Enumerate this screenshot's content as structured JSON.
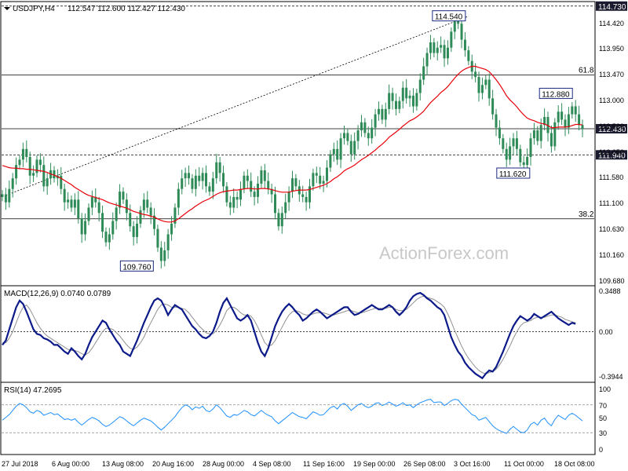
{
  "header": {
    "symbol": "USDJPY,H4",
    "ohlc": "112.547 112.600 112.427 112.430"
  },
  "watermark": "ActionForex.com",
  "price_panel": {
    "y_ticks": [
      "114.420",
      "113.950",
      "113.470",
      "113.000",
      "112.530",
      "112.050",
      "111.580",
      "111.100",
      "110.630",
      "110.160",
      "109.680"
    ],
    "price_tags": [
      {
        "label": "114.730",
        "value": 114.73,
        "style": "dark"
      },
      {
        "label": "112.430",
        "value": 112.43,
        "style": "dark"
      },
      {
        "label": "111.940",
        "value": 111.94,
        "style": "dark"
      }
    ],
    "annotations": [
      {
        "label": "114.540",
        "value": 114.54
      },
      {
        "label": "112.880",
        "value": 112.88
      },
      {
        "label": "111.620",
        "value": 111.62
      },
      {
        "label": "109.760",
        "value": 109.76
      }
    ],
    "fib_labels": [
      {
        "label": "61.8",
        "value": 113.44
      },
      {
        "label": "38.2",
        "value": 110.74
      }
    ],
    "level_lines": [
      114.73,
      113.44,
      112.43,
      111.94,
      110.74
    ]
  },
  "macd_panel": {
    "title": "MACD(12,26,9) 0.0740 0.0789",
    "y_ticks": [
      "0.3488",
      "0.00",
      "-0.3944"
    ]
  },
  "rsi_panel": {
    "title": "RSI(14) 47.2695",
    "y_ticks": [
      "100",
      "70",
      "50",
      "30",
      "0"
    ]
  },
  "x_ticks": [
    "27 Jul 2018",
    "6 Aug 00:00",
    "13 Aug 08:00",
    "20 Aug 16:00",
    "28 Aug 00:00",
    "4 Sep 08:00",
    "11 Sep 16:00",
    "19 Sep 00:00",
    "26 Sep 08:00",
    "3 Oct 16:00",
    "11 Oct 00:00",
    "18 Oct 08:00"
  ],
  "colors": {
    "candle": "#2e8b57",
    "ma": "#e8000b",
    "macd": "#0c1a8a",
    "signal": "#909090",
    "rsi": "#1e90ff",
    "tag_bg": "#1a1a2e"
  },
  "chart_data": {
    "type": "candlestick",
    "price_ylim": [
      109.5,
      114.8
    ],
    "close": [
      111.2,
      111.05,
      111.3,
      111.5,
      111.75,
      111.85,
      112.05,
      111.9,
      111.55,
      111.6,
      111.85,
      111.75,
      111.35,
      111.5,
      111.65,
      111.5,
      111.55,
      111.3,
      111.05,
      111.1,
      110.95,
      111.1,
      110.75,
      110.45,
      110.7,
      110.95,
      111.15,
      111.05,
      110.85,
      110.5,
      110.3,
      110.45,
      110.7,
      110.95,
      111.25,
      111.1,
      110.85,
      110.6,
      110.4,
      110.65,
      110.9,
      111.1,
      110.95,
      110.8,
      110.55,
      110.2,
      109.95,
      110.15,
      110.45,
      110.65,
      110.95,
      111.3,
      111.5,
      111.6,
      111.5,
      111.3,
      111.55,
      111.45,
      111.6,
      111.35,
      111.25,
      111.5,
      111.8,
      111.6,
      111.35,
      111.05,
      110.95,
      111.15,
      111.1,
      111.3,
      111.55,
      111.45,
      111.25,
      111.15,
      111.4,
      111.65,
      111.45,
      111.3,
      111.2,
      110.85,
      110.6,
      110.85,
      111.05,
      111.25,
      111.5,
      111.35,
      111.2,
      111.15,
      111.05,
      111.35,
      111.6,
      111.55,
      111.4,
      111.45,
      111.7,
      111.95,
      112.05,
      111.85,
      112.25,
      112.35,
      112.2,
      111.95,
      112.2,
      112.4,
      112.55,
      112.35,
      112.25,
      112.45,
      112.7,
      112.8,
      112.6,
      112.8,
      113.1,
      112.95,
      112.8,
      112.95,
      113.2,
      113.0,
      113.05,
      112.85,
      113.1,
      113.35,
      113.6,
      113.85,
      114.05,
      113.85,
      113.95,
      114.0,
      113.75,
      113.95,
      114.25,
      114.45,
      114.4,
      114.1,
      113.9,
      113.7,
      113.5,
      113.4,
      113.1,
      113.25,
      113.35,
      113.0,
      112.7,
      112.45,
      112.25,
      112.05,
      111.85,
      112.1,
      112.25,
      112.05,
      111.8,
      111.75,
      111.9,
      112.25,
      112.4,
      112.2,
      112.5,
      112.65,
      112.35,
      112.1,
      112.55,
      112.75,
      112.6,
      112.45,
      112.7,
      112.85,
      112.7,
      112.5,
      112.43
    ],
    "ma_start_index": 0,
    "ma": [
      111.74,
      111.72,
      111.7,
      111.69,
      111.69,
      111.68,
      111.68,
      111.67,
      111.67,
      111.66,
      111.65,
      111.64,
      111.63,
      111.61,
      111.58,
      111.56,
      111.53,
      111.5,
      111.46,
      111.42,
      111.38,
      111.33,
      111.29,
      111.25,
      111.21,
      111.18,
      111.16,
      111.14,
      111.12,
      111.1,
      111.07,
      111.04,
      111.02,
      111.0,
      110.98,
      110.96,
      110.94,
      110.91,
      110.88,
      110.86,
      110.84,
      110.82,
      110.81,
      110.79,
      110.77,
      110.74,
      110.71,
      110.69,
      110.68,
      110.68,
      110.7,
      110.74,
      110.79,
      110.84,
      110.89,
      110.93,
      110.98,
      111.02,
      111.06,
      111.09,
      111.12,
      111.16,
      111.2,
      111.23,
      111.25,
      111.26,
      111.27,
      111.28,
      111.28,
      111.29,
      111.3,
      111.31,
      111.31,
      111.3,
      111.3,
      111.31,
      111.31,
      111.3,
      111.29,
      111.27,
      111.25,
      111.24,
      111.24,
      111.24,
      111.26,
      111.27,
      111.28,
      111.28,
      111.28,
      111.29,
      111.31,
      111.33,
      111.35,
      111.37,
      111.4,
      111.44,
      111.49,
      111.53,
      111.58,
      111.64,
      111.68,
      111.71,
      111.75,
      111.8,
      111.85,
      111.89,
      111.93,
      111.98,
      112.03,
      112.09,
      112.14,
      112.2,
      112.27,
      112.32,
      112.37,
      112.42,
      112.48,
      112.53,
      112.58,
      112.61,
      112.65,
      112.7,
      112.76,
      112.84,
      112.92,
      112.98,
      113.04,
      113.11,
      113.16,
      113.22,
      113.3,
      113.38,
      113.45,
      113.51,
      113.55,
      113.58,
      113.6,
      113.6,
      113.58,
      113.56,
      113.54,
      113.5,
      113.43,
      113.35,
      113.26,
      113.16,
      113.05,
      112.97,
      112.91,
      112.84,
      112.76,
      112.69,
      112.63,
      112.6,
      112.58,
      112.55,
      112.53,
      112.52,
      112.49,
      112.45,
      112.45,
      112.46,
      112.46,
      112.46,
      112.47,
      112.49,
      112.51,
      112.51,
      112.5
    ],
    "macd_ylim": [
      -0.45,
      0.4
    ],
    "macd": [
      -0.12,
      -0.08,
      0.02,
      0.12,
      0.22,
      0.28,
      0.25,
      0.18,
      0.1,
      0.02,
      -0.02,
      -0.03,
      -0.06,
      -0.07,
      -0.09,
      -0.12,
      -0.12,
      -0.15,
      -0.18,
      -0.2,
      -0.15,
      -0.18,
      -0.22,
      -0.25,
      -0.2,
      -0.12,
      -0.05,
      0.0,
      0.05,
      0.1,
      0.08,
      0.02,
      -0.03,
      -0.08,
      -0.12,
      -0.18,
      -0.2,
      -0.22,
      -0.15,
      -0.08,
      0.0,
      0.08,
      0.15,
      0.22,
      0.28,
      0.3,
      0.28,
      0.22,
      0.15,
      0.2,
      0.24,
      0.22,
      0.2,
      0.15,
      0.1,
      0.05,
      0.02,
      -0.02,
      -0.05,
      -0.06,
      -0.04,
      0.0,
      0.08,
      0.18,
      0.26,
      0.3,
      0.24,
      0.18,
      0.12,
      0.1,
      0.12,
      0.15,
      0.1,
      0.0,
      -0.1,
      -0.18,
      -0.22,
      -0.15,
      -0.05,
      0.05,
      0.12,
      0.18,
      0.22,
      0.25,
      0.22,
      0.18,
      0.15,
      0.1,
      0.12,
      0.15,
      0.18,
      0.2,
      0.18,
      0.15,
      0.12,
      0.14,
      0.16,
      0.18,
      0.2,
      0.22,
      0.22,
      0.18,
      0.15,
      0.16,
      0.18,
      0.2,
      0.22,
      0.24,
      0.22,
      0.2,
      0.2,
      0.22,
      0.24,
      0.22,
      0.18,
      0.15,
      0.18,
      0.22,
      0.28,
      0.32,
      0.34,
      0.35,
      0.33,
      0.3,
      0.28,
      0.25,
      0.22,
      0.2,
      0.15,
      0.05,
      -0.05,
      -0.12,
      -0.18,
      -0.22,
      -0.28,
      -0.32,
      -0.35,
      -0.38,
      -0.4,
      -0.42,
      -0.38,
      -0.35,
      -0.36,
      -0.32,
      -0.25,
      -0.18,
      -0.1,
      -0.02,
      0.05,
      0.1,
      0.14,
      0.12,
      0.1,
      0.12,
      0.16,
      0.14,
      0.12,
      0.14,
      0.16,
      0.18,
      0.15,
      0.12,
      0.1,
      0.08,
      0.06,
      0.08,
      0.07
    ],
    "signal": [
      -0.1,
      -0.1,
      -0.06,
      0.0,
      0.08,
      0.16,
      0.22,
      0.24,
      0.2,
      0.14,
      0.08,
      0.03,
      -0.01,
      -0.04,
      -0.06,
      -0.08,
      -0.1,
      -0.12,
      -0.14,
      -0.16,
      -0.17,
      -0.17,
      -0.18,
      -0.2,
      -0.21,
      -0.19,
      -0.15,
      -0.1,
      -0.05,
      0.0,
      0.03,
      0.03,
      0.02,
      -0.01,
      -0.04,
      -0.08,
      -0.12,
      -0.15,
      -0.16,
      -0.14,
      -0.1,
      -0.05,
      0.02,
      0.08,
      0.14,
      0.2,
      0.24,
      0.25,
      0.24,
      0.22,
      0.22,
      0.22,
      0.21,
      0.2,
      0.17,
      0.13,
      0.09,
      0.05,
      0.02,
      -0.01,
      -0.02,
      -0.02,
      0.01,
      0.06,
      0.12,
      0.19,
      0.22,
      0.22,
      0.2,
      0.17,
      0.15,
      0.15,
      0.14,
      0.1,
      0.04,
      -0.03,
      -0.1,
      -0.13,
      -0.12,
      -0.08,
      -0.02,
      0.04,
      0.1,
      0.15,
      0.18,
      0.19,
      0.18,
      0.16,
      0.15,
      0.15,
      0.16,
      0.17,
      0.17,
      0.17,
      0.16,
      0.15,
      0.15,
      0.16,
      0.17,
      0.18,
      0.19,
      0.19,
      0.18,
      0.17,
      0.17,
      0.18,
      0.19,
      0.2,
      0.21,
      0.21,
      0.21,
      0.21,
      0.22,
      0.22,
      0.2,
      0.19,
      0.19,
      0.2,
      0.23,
      0.26,
      0.29,
      0.31,
      0.32,
      0.31,
      0.3,
      0.29,
      0.27,
      0.25,
      0.22,
      0.16,
      0.09,
      0.01,
      -0.06,
      -0.13,
      -0.19,
      -0.24,
      -0.28,
      -0.32,
      -0.35,
      -0.37,
      -0.38,
      -0.37,
      -0.36,
      -0.34,
      -0.3,
      -0.25,
      -0.19,
      -0.13,
      -0.06,
      0.0,
      0.05,
      0.08,
      0.09,
      0.1,
      0.12,
      0.13,
      0.13,
      0.13,
      0.14,
      0.15,
      0.15,
      0.14,
      0.13,
      0.11,
      0.1,
      0.09,
      0.08
    ],
    "rsi": [
      48,
      52,
      56,
      62,
      68,
      72,
      70,
      66,
      60,
      58,
      62,
      60,
      55,
      57,
      59,
      56,
      57,
      53,
      49,
      50,
      48,
      50,
      45,
      41,
      45,
      49,
      52,
      50,
      47,
      42,
      39,
      41,
      45,
      49,
      53,
      51,
      47,
      43,
      40,
      44,
      48,
      51,
      49,
      47,
      43,
      38,
      34,
      38,
      43,
      48,
      53,
      60,
      66,
      70,
      68,
      63,
      67,
      65,
      68,
      62,
      60,
      64,
      70,
      66,
      60,
      54,
      52,
      56,
      55,
      58,
      62,
      60,
      56,
      54,
      58,
      62,
      58,
      55,
      53,
      47,
      43,
      47,
      51,
      55,
      59,
      56,
      53,
      52,
      50,
      55,
      60,
      58,
      55,
      56,
      61,
      66,
      68,
      64,
      70,
      72,
      68,
      62,
      66,
      70,
      72,
      68,
      66,
      68,
      72,
      73,
      69,
      71,
      74,
      71,
      68,
      70,
      73,
      69,
      70,
      66,
      70,
      73,
      75,
      77,
      78,
      73,
      74,
      74,
      69,
      72,
      76,
      78,
      77,
      71,
      66,
      61,
      56,
      54,
      48,
      50,
      52,
      46,
      40,
      36,
      33,
      31,
      29,
      35,
      39,
      35,
      31,
      30,
      34,
      42,
      45,
      41,
      48,
      51,
      44,
      40,
      49,
      55,
      52,
      49,
      55,
      58,
      55,
      51,
      47
    ]
  }
}
